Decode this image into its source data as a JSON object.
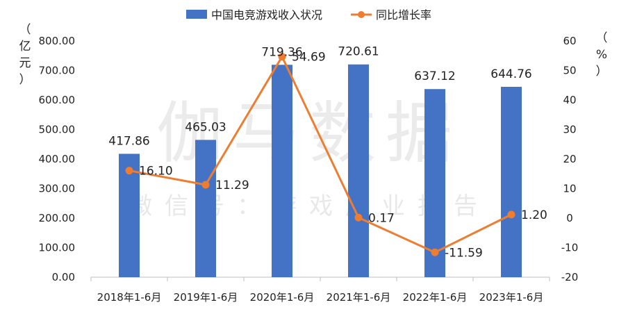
{
  "watermark": {
    "main": "伽马数据",
    "sub": "微信号：游戏产业报告"
  },
  "colors": {
    "bar": "#4472C4",
    "line": "#ED7D31",
    "axis": "#bfbfbf"
  },
  "left_unit": [
    "（",
    "亿",
    "元",
    "）"
  ],
  "right_unit": [
    "（",
    "%",
    "）"
  ],
  "chart_data": {
    "type": "bar",
    "categories": [
      "2018年1-6月",
      "2019年1-6月",
      "2020年1-6月",
      "2021年1-6月",
      "2022年1-6月",
      "2023年1-6月"
    ],
    "series": [
      {
        "name": "中国电竞游戏收入状况",
        "type": "bar",
        "axis": "left",
        "values": [
          417.86,
          465.03,
          719.36,
          720.61,
          637.12,
          644.76
        ],
        "labels": [
          "417.86",
          "465.03",
          "719.36",
          "720.61",
          "637.12",
          "644.76"
        ]
      },
      {
        "name": "同比增长率",
        "type": "line",
        "axis": "right",
        "values": [
          16.1,
          11.29,
          54.69,
          0.17,
          -11.59,
          1.2
        ],
        "labels": [
          "16.10",
          "11.29",
          "54.69",
          "0.17",
          "-11.59",
          "1.20"
        ]
      }
    ],
    "left_axis": {
      "ylim": [
        0,
        800
      ],
      "ticks": [
        "0.00",
        "100.00",
        "200.00",
        "300.00",
        "400.00",
        "500.00",
        "600.00",
        "700.00",
        "800.00"
      ]
    },
    "right_axis": {
      "ylim": [
        -20,
        60
      ],
      "ticks": [
        "-20",
        "-10",
        "0",
        "10",
        "20",
        "30",
        "40",
        "50",
        "60"
      ]
    },
    "legend_position": "top",
    "grid": false
  }
}
